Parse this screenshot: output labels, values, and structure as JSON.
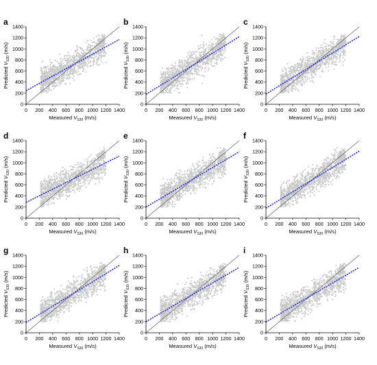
{
  "chart_data": [
    {
      "type": "scatter",
      "panel_label": "a",
      "xlim": [
        0,
        1400
      ],
      "ylim": [
        0,
        1400
      ],
      "ticks": [
        "0",
        "200",
        "400",
        "600",
        "800",
        "1000",
        "1200",
        "1400"
      ],
      "xlabel": {
        "pre": "Measured ",
        "v": "V",
        "sub": "S30",
        "post": " (m/s)"
      },
      "ylabel": {
        "pre": "Predicted ",
        "v": "V",
        "sub": "S30",
        "post": " (m/s)"
      },
      "reference_line": [
        [
          0,
          0
        ],
        [
          1400,
          1400
        ]
      ],
      "fit_line": [
        [
          0,
          245
        ],
        [
          1400,
          1170
        ]
      ],
      "scatter_color": "#c8c8c8",
      "fit_color": "#1a1aff",
      "ref_color": "#555555"
    },
    {
      "type": "scatter",
      "panel_label": "b",
      "xlim": [
        0,
        1400
      ],
      "ylim": [
        0,
        1400
      ],
      "ticks": [
        "0",
        "200",
        "400",
        "600",
        "800",
        "1000",
        "1200",
        "1400"
      ],
      "xlabel": {
        "pre": "Measured ",
        "v": "V",
        "sub": "S30",
        "post": " (m/s)"
      },
      "ylabel": {
        "pre": "Predicted ",
        "v": "V",
        "sub": "S30",
        "post": " (m/s)"
      },
      "reference_line": [
        [
          0,
          0
        ],
        [
          1400,
          1400
        ]
      ],
      "fit_line": [
        [
          0,
          180
        ],
        [
          1400,
          1220
        ]
      ],
      "scatter_color": "#c8c8c8",
      "fit_color": "#1a1aff",
      "ref_color": "#555555"
    },
    {
      "type": "scatter",
      "panel_label": "c",
      "xlim": [
        0,
        1400
      ],
      "ylim": [
        0,
        1400
      ],
      "ticks": [
        "0",
        "200",
        "400",
        "600",
        "800",
        "1000",
        "1200",
        "1400"
      ],
      "xlabel": {
        "pre": "Measured ",
        "v": "V",
        "sub": "S30",
        "post": " (m/s)"
      },
      "ylabel": {
        "pre": "Predicted ",
        "v": "V",
        "sub": "S30",
        "post": " (m/s)"
      },
      "reference_line": [
        [
          0,
          0
        ],
        [
          1400,
          1400
        ]
      ],
      "fit_line": [
        [
          0,
          185
        ],
        [
          1400,
          1225
        ]
      ],
      "scatter_color": "#c8c8c8",
      "fit_color": "#1a1aff",
      "ref_color": "#555555"
    },
    {
      "type": "scatter",
      "panel_label": "d",
      "xlim": [
        0,
        1400
      ],
      "ylim": [
        0,
        1400
      ],
      "ticks": [
        "0",
        "200",
        "400",
        "600",
        "800",
        "1000",
        "1200",
        "1400"
      ],
      "xlabel": {
        "pre": "Measured ",
        "v": "V",
        "sub": "S30",
        "post": " (m/s)"
      },
      "ylabel": {
        "pre": "Predicted ",
        "v": "V",
        "sub": "S30",
        "post": " (m/s)"
      },
      "reference_line": [
        [
          0,
          0
        ],
        [
          1400,
          1400
        ]
      ],
      "fit_line": [
        [
          0,
          285
        ],
        [
          1400,
          1120
        ]
      ],
      "scatter_color": "#c8c8c8",
      "fit_color": "#1a1aff",
      "ref_color": "#555555"
    },
    {
      "type": "scatter",
      "panel_label": "e",
      "xlim": [
        0,
        1400
      ],
      "ylim": [
        0,
        1400
      ],
      "ticks": [
        "0",
        "200",
        "400",
        "600",
        "800",
        "1000",
        "1200",
        "1400"
      ],
      "xlabel": {
        "pre": "Measured ",
        "v": "V",
        "sub": "S30",
        "post": " (m/s)"
      },
      "ylabel": {
        "pre": "Predicted ",
        "v": "V",
        "sub": "S30",
        "post": " (m/s)"
      },
      "reference_line": [
        [
          0,
          0
        ],
        [
          1400,
          1400
        ]
      ],
      "fit_line": [
        [
          0,
          200
        ],
        [
          1400,
          1200
        ]
      ],
      "scatter_color": "#c8c8c8",
      "fit_color": "#1a1aff",
      "ref_color": "#555555"
    },
    {
      "type": "scatter",
      "panel_label": "f",
      "xlim": [
        0,
        1400
      ],
      "ylim": [
        0,
        1400
      ],
      "ticks": [
        "0",
        "200",
        "400",
        "600",
        "800",
        "1000",
        "1200",
        "1400"
      ],
      "xlabel": {
        "pre": "Measured ",
        "v": "V",
        "sub": "S30",
        "post": " (m/s)"
      },
      "ylabel": {
        "pre": "Predicted ",
        "v": "V",
        "sub": "S30",
        "post": " (m/s)"
      },
      "reference_line": [
        [
          0,
          0
        ],
        [
          1400,
          1400
        ]
      ],
      "fit_line": [
        [
          0,
          180
        ],
        [
          1400,
          1210
        ]
      ],
      "scatter_color": "#c8c8c8",
      "fit_color": "#1a1aff",
      "ref_color": "#555555"
    },
    {
      "type": "scatter",
      "panel_label": "g",
      "xlim": [
        0,
        1400
      ],
      "ylim": [
        0,
        1400
      ],
      "ticks": [
        "0",
        "200",
        "400",
        "600",
        "800",
        "1000",
        "1200",
        "1400"
      ],
      "xlabel": {
        "pre": "Measured ",
        "v": "V",
        "sub": "S30",
        "post": " (m/s)"
      },
      "ylabel": {
        "pre": "Predicted ",
        "v": "V",
        "sub": "S30",
        "post": " (m/s)"
      },
      "reference_line": [
        [
          0,
          0
        ],
        [
          1400,
          1400
        ]
      ],
      "fit_line": [
        [
          0,
          185
        ],
        [
          1400,
          1215
        ]
      ],
      "scatter_color": "#c8c8c8",
      "fit_color": "#1a1aff",
      "ref_color": "#555555"
    },
    {
      "type": "scatter",
      "panel_label": "h",
      "xlim": [
        0,
        1400
      ],
      "ylim": [
        0,
        1400
      ],
      "ticks": [
        "0",
        "200",
        "400",
        "600",
        "800",
        "1000",
        "1200",
        "1400"
      ],
      "xlabel": {
        "pre": "Measured ",
        "v": "V",
        "sub": "S30",
        "post": " (m/s)"
      },
      "ylabel": {
        "pre": "Predicted ",
        "v": "V",
        "sub": "S30",
        "post": " (m/s)"
      },
      "reference_line": [
        [
          0,
          0
        ],
        [
          1400,
          1400
        ]
      ],
      "fit_line": [
        [
          0,
          200
        ],
        [
          1400,
          1180
        ]
      ],
      "scatter_color": "#c8c8c8",
      "fit_color": "#1a1aff",
      "ref_color": "#555555"
    },
    {
      "type": "scatter",
      "panel_label": "i",
      "xlim": [
        0,
        1400
      ],
      "ylim": [
        0,
        1400
      ],
      "ticks": [
        "0",
        "200",
        "400",
        "600",
        "800",
        "1000",
        "1200",
        "1400"
      ],
      "xlabel": {
        "pre": "Measured ",
        "v": "V",
        "sub": "S30",
        "post": " (m/s)"
      },
      "ylabel": {
        "pre": "Predicted ",
        "v": "V",
        "sub": "S30",
        "post": " (m/s)"
      },
      "reference_line": [
        [
          0,
          0
        ],
        [
          1400,
          1400
        ]
      ],
      "fit_line": [
        [
          0,
          195
        ],
        [
          1400,
          1180
        ]
      ],
      "scatter_color": "#c8c8c8",
      "fit_color": "#1a1aff",
      "ref_color": "#555555"
    }
  ]
}
